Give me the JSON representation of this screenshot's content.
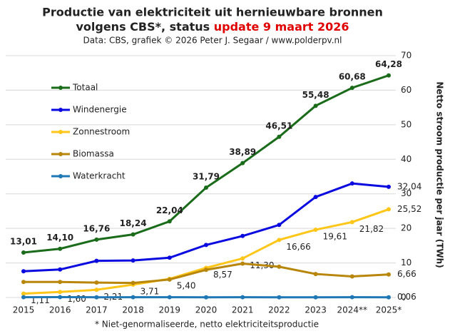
{
  "chart_data": {
    "type": "line",
    "title": {
      "line1": "Productie van elektriciteit  uit hernieuwbare bronnen",
      "line2": "volgens CBS*, status ",
      "highlight": "update 9 maart 2026"
    },
    "subtitle": "Data: CBS, grafiek © 2026 Peter J. Segaar / www.polderpv.nl",
    "y_label": "Netto stroom productie per jaar (TWh)",
    "footnote": "* Niet-genormaliseerde,  netto elektriciteitsproductie",
    "categories": [
      "2015",
      "2016",
      "2017",
      "2018",
      "2019",
      "2020",
      "2021",
      "2022",
      "2023",
      "2024**",
      "2025*"
    ],
    "ylim": [
      0,
      70
    ],
    "yticks": [
      0,
      10,
      20,
      30,
      40,
      50,
      60,
      70
    ],
    "grid": true,
    "highlight_color": "#e00000",
    "series": [
      {
        "name": "Totaal",
        "color": "#1a6b1a",
        "values": [
          13.01,
          14.1,
          16.76,
          18.24,
          22.04,
          31.79,
          38.89,
          46.51,
          55.48,
          60.68,
          64.28
        ],
        "value_labels": [
          "13,01",
          "14,10",
          "16,76",
          "18,24",
          "22,04",
          "31,79",
          "38,89",
          "46,51",
          "55,48",
          "60,68",
          "64,28"
        ]
      },
      {
        "name": "Windenergie",
        "color": "#0a0ae0",
        "values": [
          7.6,
          8.1,
          10.6,
          10.7,
          11.5,
          15.2,
          17.8,
          21.0,
          29.1,
          33.0,
          32.04
        ],
        "value_labels": [
          null,
          null,
          null,
          null,
          null,
          null,
          null,
          null,
          null,
          null,
          "32,04"
        ]
      },
      {
        "name": "Zonnestroom",
        "color": "#ffc61a",
        "values": [
          1.11,
          1.6,
          2.21,
          3.71,
          5.4,
          8.57,
          11.3,
          16.66,
          19.61,
          21.82,
          25.52
        ],
        "value_labels": [
          "1,11",
          "1,60",
          "2,21",
          "3,71",
          "5,40",
          "8,57",
          "11,30",
          "16,66",
          "19,61",
          "21,82",
          "25,52"
        ]
      },
      {
        "name": "Biomassa",
        "color": "#b8860b",
        "values": [
          4.5,
          4.5,
          4.3,
          4.2,
          5.2,
          8.0,
          9.8,
          8.9,
          6.8,
          6.1,
          6.66
        ],
        "value_labels": [
          null,
          null,
          null,
          null,
          null,
          null,
          null,
          null,
          null,
          null,
          "6,66"
        ]
      },
      {
        "name": "Waterkracht",
        "color": "#1f77b4",
        "values": [
          0.09,
          0.1,
          0.06,
          0.07,
          0.08,
          0.05,
          0.08,
          0.06,
          0.06,
          0.09,
          0.06
        ],
        "value_labels": [
          null,
          null,
          null,
          null,
          null,
          null,
          null,
          null,
          null,
          null,
          "0,06"
        ]
      }
    ]
  }
}
